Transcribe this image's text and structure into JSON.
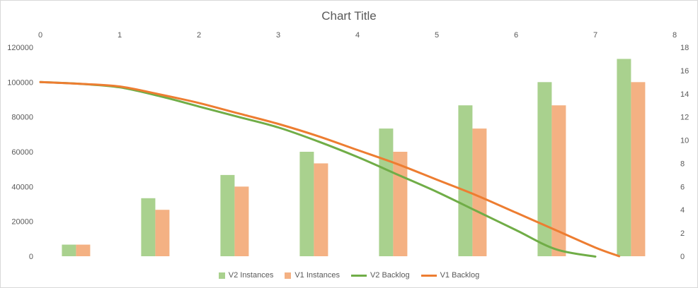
{
  "chart_data": {
    "type": "bar",
    "title": "Chart Title",
    "categories": [
      "0",
      "1",
      "2",
      "3",
      "4",
      "5",
      "6",
      "7"
    ],
    "series": [
      {
        "name": "V2 Instances",
        "type": "bar",
        "axis": "right",
        "color": "#a9d18e",
        "values": [
          1,
          5,
          7,
          9,
          11,
          13,
          15,
          17
        ]
      },
      {
        "name": "V1 Instances",
        "type": "bar",
        "axis": "right",
        "color": "#f4b183",
        "values": [
          1,
          4,
          6,
          8,
          9,
          11,
          13,
          15
        ]
      }
    ],
    "lines": [
      {
        "name": "V2 Backlog",
        "color": "#70ad47",
        "axis": "left",
        "x": [
          0,
          0.5,
          1,
          1.5,
          2,
          2.5,
          3,
          3.5,
          4,
          4.5,
          5,
          5.5,
          6,
          6.5,
          7
        ],
        "y": [
          100000,
          99000,
          97000,
          92000,
          86000,
          80000,
          74000,
          66000,
          57000,
          47000,
          37000,
          26000,
          15000,
          4000,
          -200
        ]
      },
      {
        "name": "V1 Backlog",
        "color": "#ed7d31",
        "axis": "left",
        "x": [
          0,
          0.5,
          1,
          1.5,
          2,
          2.5,
          3,
          3.5,
          4,
          4.5,
          5,
          5.5,
          6,
          6.5,
          7,
          7.3
        ],
        "y": [
          100000,
          99000,
          97500,
          93000,
          88000,
          82000,
          76000,
          69000,
          61000,
          53000,
          44000,
          35000,
          25000,
          15000,
          5000,
          0
        ]
      }
    ],
    "x_top_axis": {
      "range": [
        0,
        8
      ],
      "ticks": [
        "0",
        "1",
        "2",
        "3",
        "4",
        "5",
        "6",
        "7",
        "8"
      ]
    },
    "y_left_axis": {
      "range": [
        0,
        120000
      ],
      "ticks": [
        "0",
        "20000",
        "40000",
        "60000",
        "80000",
        "100000",
        "120000"
      ]
    },
    "y_right_axis": {
      "range": [
        0,
        18
      ],
      "ticks": [
        "0",
        "2",
        "4",
        "6",
        "8",
        "10",
        "12",
        "14",
        "16",
        "18"
      ]
    },
    "legend": {
      "position": "bottom",
      "items": [
        {
          "label": "V2 Instances",
          "kind": "box",
          "color": "#a9d18e"
        },
        {
          "label": "V1 Instances",
          "kind": "box",
          "color": "#f4b183"
        },
        {
          "label": "V2 Backlog",
          "kind": "line",
          "color": "#70ad47"
        },
        {
          "label": "V1 Backlog",
          "kind": "line",
          "color": "#ed7d31"
        }
      ]
    },
    "grid": false
  }
}
